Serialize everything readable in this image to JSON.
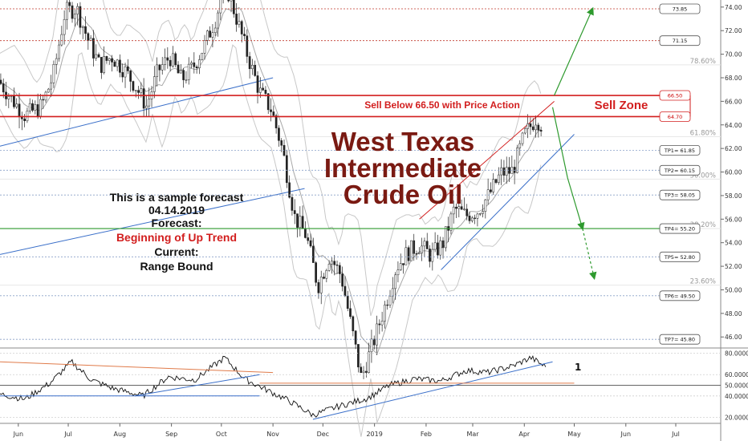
{
  "chart_data": [
    {
      "type": "candlestick",
      "title_lines": [
        "West Texas",
        "Intermediate",
        "Crude Oil"
      ],
      "notes": [
        {
          "text": "This is a sample forecast",
          "color": "black"
        },
        {
          "text": "04.14.2019",
          "color": "black"
        },
        {
          "text": "Forecast:",
          "color": "black"
        },
        {
          "text": "Beginning of Up Trend",
          "color": "red"
        },
        {
          "text": "Current:",
          "color": "black"
        },
        {
          "text": "Range Bound",
          "color": "black"
        }
      ],
      "y_ticks": [
        "74.00",
        "72.00",
        "70.00",
        "68.00",
        "66.00",
        "64.00",
        "62.00",
        "60.00",
        "58.00",
        "56.00",
        "54.00",
        "52.00",
        "50.00",
        "48.00",
        "46.00"
      ],
      "ylim": [
        45.2,
        74.6
      ],
      "x_months": [
        "Jun",
        "Jul",
        "Aug",
        "Sep",
        "Oct",
        "Nov",
        "Dec",
        "2019",
        "Feb",
        "Mar",
        "Apr",
        "May",
        "Jun",
        "Jul"
      ],
      "fib_levels": [
        {
          "label": "78.60%",
          "value": 69.1
        },
        {
          "label": "61.80%",
          "value": 63.0
        },
        {
          "label": "50.00%",
          "value": 59.4
        },
        {
          "label": "38.20%",
          "value": 55.2
        },
        {
          "label": "23.60%",
          "value": 50.4
        }
      ],
      "levels": [
        {
          "label": "73.85",
          "value": 73.85,
          "kind": "target"
        },
        {
          "label": "71.15",
          "value": 71.15,
          "kind": "target"
        },
        {
          "label": "66.50",
          "value": 66.5,
          "kind": "zone"
        },
        {
          "label": "64.70",
          "value": 64.7,
          "kind": "zone"
        },
        {
          "label": "TP1= 61.85",
          "value": 61.85,
          "kind": "tp"
        },
        {
          "label": "TP2= 60.15",
          "value": 60.15,
          "kind": "tp"
        },
        {
          "label": "TP3= 58.05",
          "value": 58.05,
          "kind": "tp"
        },
        {
          "label": "TP4= 55.20",
          "value": 55.2,
          "kind": "tp"
        },
        {
          "label": "TP5= 52.80",
          "value": 52.8,
          "kind": "tp"
        },
        {
          "label": "TP6= 49.50",
          "value": 49.5,
          "kind": "tp"
        },
        {
          "label": "TP7= 45.80",
          "value": 45.8,
          "kind": "tp"
        }
      ],
      "sell_text": "Sell Below 66.50 with Price Action",
      "sell_zone_label": "Sell Zone",
      "price_path": [
        {
          "d": "2018-05-20",
          "p": 67.8
        },
        {
          "d": "2018-05-28",
          "p": 66.2
        },
        {
          "d": "2018-06-05",
          "p": 64.8
        },
        {
          "d": "2018-06-15",
          "p": 65.6
        },
        {
          "d": "2018-06-22",
          "p": 68.2
        },
        {
          "d": "2018-06-29",
          "p": 73.6
        },
        {
          "d": "2018-07-06",
          "p": 73.9
        },
        {
          "d": "2018-07-13",
          "p": 71.2
        },
        {
          "d": "2018-07-20",
          "p": 69.0
        },
        {
          "d": "2018-07-27",
          "p": 69.8
        },
        {
          "d": "2018-08-03",
          "p": 68.8
        },
        {
          "d": "2018-08-10",
          "p": 67.4
        },
        {
          "d": "2018-08-17",
          "p": 65.6
        },
        {
          "d": "2018-08-24",
          "p": 68.6
        },
        {
          "d": "2018-08-31",
          "p": 69.8
        },
        {
          "d": "2018-09-07",
          "p": 67.8
        },
        {
          "d": "2018-09-14",
          "p": 68.9
        },
        {
          "d": "2018-09-21",
          "p": 70.8
        },
        {
          "d": "2018-09-28",
          "p": 73.2
        },
        {
          "d": "2018-10-03",
          "p": 76.2
        },
        {
          "d": "2018-10-10",
          "p": 73.1
        },
        {
          "d": "2018-10-17",
          "p": 69.8
        },
        {
          "d": "2018-10-24",
          "p": 66.8
        },
        {
          "d": "2018-10-31",
          "p": 65.3
        },
        {
          "d": "2018-11-07",
          "p": 61.7
        },
        {
          "d": "2018-11-14",
          "p": 56.2
        },
        {
          "d": "2018-11-21",
          "p": 54.6
        },
        {
          "d": "2018-11-28",
          "p": 50.3
        },
        {
          "d": "2018-12-05",
          "p": 52.9
        },
        {
          "d": "2018-12-12",
          "p": 51.2
        },
        {
          "d": "2018-12-19",
          "p": 46.2
        },
        {
          "d": "2018-12-24",
          "p": 42.5
        },
        {
          "d": "2018-12-31",
          "p": 45.4
        },
        {
          "d": "2019-01-07",
          "p": 48.5
        },
        {
          "d": "2019-01-14",
          "p": 51.9
        },
        {
          "d": "2019-01-21",
          "p": 53.2
        },
        {
          "d": "2019-01-28",
          "p": 53.8
        },
        {
          "d": "2019-02-04",
          "p": 52.9
        },
        {
          "d": "2019-02-11",
          "p": 53.9
        },
        {
          "d": "2019-02-18",
          "p": 56.9
        },
        {
          "d": "2019-02-25",
          "p": 56.3
        },
        {
          "d": "2019-03-04",
          "p": 56.7
        },
        {
          "d": "2019-03-11",
          "p": 58.1
        },
        {
          "d": "2019-03-18",
          "p": 59.9
        },
        {
          "d": "2019-03-25",
          "p": 60.1
        },
        {
          "d": "2019-04-01",
          "p": 63.1
        },
        {
          "d": "2019-04-08",
          "p": 64.6
        },
        {
          "d": "2019-04-12",
          "p": 63.9
        }
      ],
      "forecast_path": [
        {
          "d": "2019-04-19",
          "p": 66.5
        },
        {
          "d": "2019-05-12",
          "p": 73.85
        }
      ],
      "forecast_down_path": [
        {
          "d": "2019-04-18",
          "p": 65.5
        },
        {
          "d": "2019-04-27",
          "p": 59.5
        },
        {
          "d": "2019-05-06",
          "p": 55.2
        },
        {
          "d": "2019-05-13",
          "p": 51.0
        }
      ],
      "legend": "none",
      "grid": true
    },
    {
      "type": "line",
      "name": "oscillator",
      "y_ticks": [
        "80.0000",
        "60.0000",
        "50.0000",
        "40.0000",
        "20.0000"
      ],
      "ylim": [
        15,
        82
      ],
      "marker_label": "1",
      "values": [
        {
          "d": "2018-05-20",
          "v": 42
        },
        {
          "d": "2018-06-05",
          "v": 37
        },
        {
          "d": "2018-06-20",
          "v": 52
        },
        {
          "d": "2018-07-03",
          "v": 72
        },
        {
          "d": "2018-07-15",
          "v": 55
        },
        {
          "d": "2018-07-28",
          "v": 47
        },
        {
          "d": "2018-08-15",
          "v": 40
        },
        {
          "d": "2018-08-30",
          "v": 58
        },
        {
          "d": "2018-09-15",
          "v": 55
        },
        {
          "d": "2018-10-03",
          "v": 76
        },
        {
          "d": "2018-10-15",
          "v": 56
        },
        {
          "d": "2018-10-29",
          "v": 45
        },
        {
          "d": "2018-11-10",
          "v": 36
        },
        {
          "d": "2018-11-25",
          "v": 22
        },
        {
          "d": "2018-12-10",
          "v": 30
        },
        {
          "d": "2018-12-28",
          "v": 38
        },
        {
          "d": "2019-01-10",
          "v": 50
        },
        {
          "d": "2019-01-25",
          "v": 56
        },
        {
          "d": "2019-02-10",
          "v": 54
        },
        {
          "d": "2019-02-25",
          "v": 64
        },
        {
          "d": "2019-03-10",
          "v": 62
        },
        {
          "d": "2019-03-25",
          "v": 68
        },
        {
          "d": "2019-04-05",
          "v": 76
        },
        {
          "d": "2019-04-14",
          "v": 67
        }
      ]
    }
  ]
}
